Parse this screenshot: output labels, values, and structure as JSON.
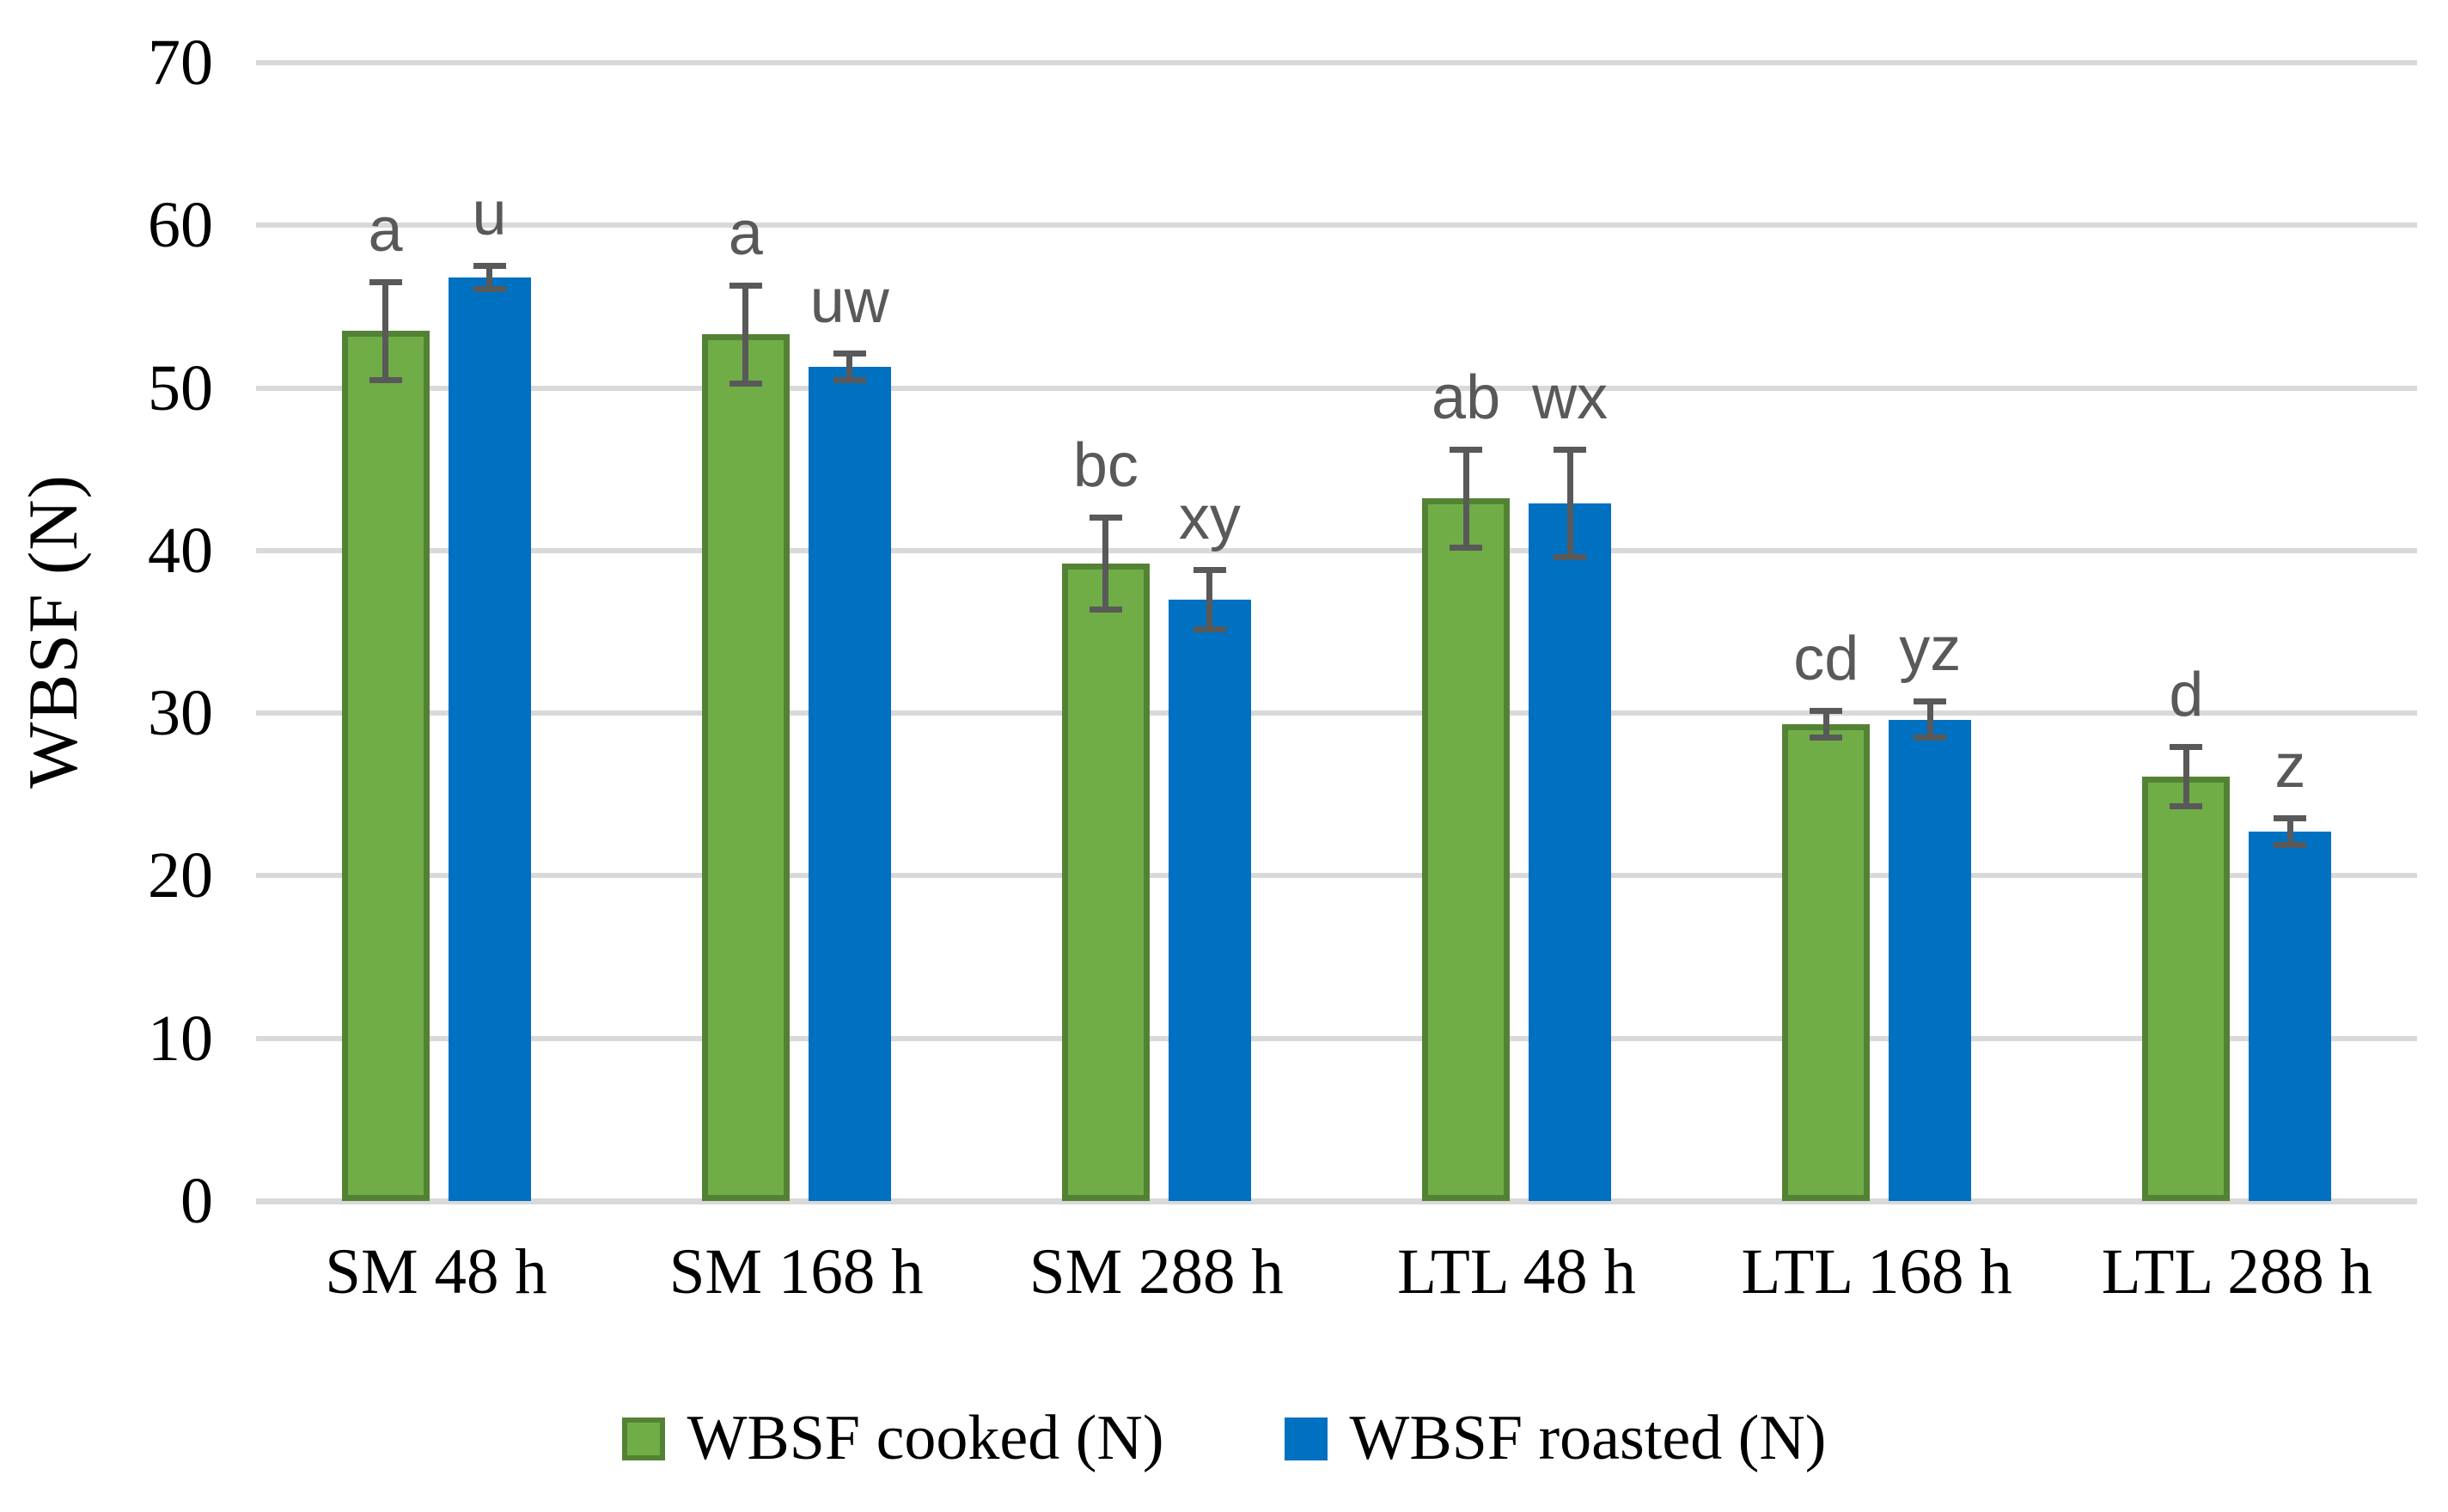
{
  "chart_data": {
    "type": "bar",
    "title": "",
    "xlabel": "",
    "ylabel": "WBSF (N)",
    "ylim": [
      0,
      70
    ],
    "yticks": [
      0,
      10,
      20,
      30,
      40,
      50,
      60,
      70
    ],
    "grid": true,
    "legend_position": "bottom",
    "categories": [
      "SM 48 h",
      "SM 168 h",
      "SM 288 h",
      "LTL 48 h",
      "LTL 168 h",
      "LTL 288 h"
    ],
    "series": [
      {
        "name": "WBSF cooked (N)",
        "color": "#70AD47",
        "border_color": "#548235",
        "values": [
          53.5,
          53.3,
          39.2,
          43.2,
          29.3,
          26.1
        ],
        "errors": [
          3.2,
          3.2,
          3.0,
          3.2,
          1.0,
          2.0
        ],
        "letters": [
          "a",
          "a",
          "bc",
          "ab",
          "cd",
          "d"
        ]
      },
      {
        "name": "WBSF roasted (N)",
        "color": "#0070C0",
        "border_color": "#0070C0",
        "values": [
          56.8,
          51.3,
          37.0,
          42.9,
          29.6,
          22.7
        ],
        "errors": [
          0.9,
          1.0,
          2.0,
          3.5,
          1.3,
          1.0
        ],
        "letters": [
          "u",
          "uw",
          "xy",
          "wx",
          "yz",
          "z"
        ]
      }
    ],
    "colors": {
      "gridline": "#D9D9D9",
      "axis_text": "#000000",
      "error_bar": "#595959",
      "annotation": "#595959"
    }
  }
}
